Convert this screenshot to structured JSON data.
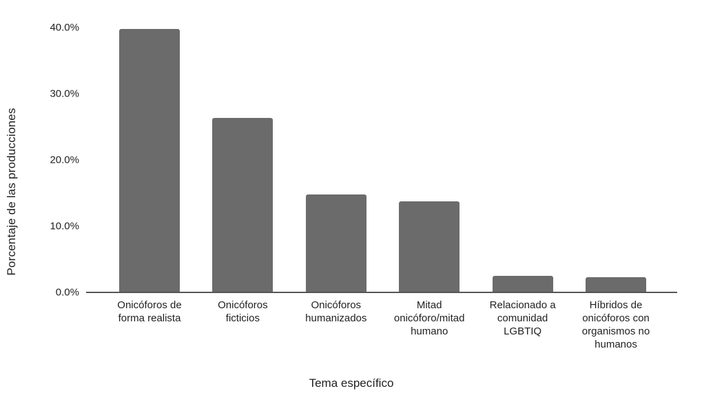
{
  "chart_data": {
    "type": "bar",
    "title": "",
    "xlabel": "Tema específico",
    "ylabel": "Porcentaje de las producciones",
    "categories": [
      "Onicóforos de forma realista",
      "Onicóforos ficticios",
      "Onicóforos humanizados",
      "Mitad onicóforo/mitad humano",
      "Relacionado a comunidad LGBTIQ",
      "Híbridos de onicóforos con organismos no humanos"
    ],
    "category_lines": [
      [
        "Onicóforos de",
        "forma realista"
      ],
      [
        "Onicóforos",
        "ficticios"
      ],
      [
        "Onicóforos",
        "humanizados"
      ],
      [
        "Mitad",
        "onicóforo/mitad",
        "humano"
      ],
      [
        "Relacionado a",
        "comunidad",
        "LGBTIQ"
      ],
      [
        "Híbridos de",
        "onicóforos con",
        "organismos no",
        "humanos"
      ]
    ],
    "values": [
      39.8,
      26.4,
      14.8,
      13.7,
      2.5,
      2.3
    ],
    "value_unit": "%",
    "ylim": [
      0,
      40
    ],
    "yticks": [
      0,
      10,
      20,
      30,
      40
    ],
    "ytick_labels": [
      "0.0%",
      "10.0%",
      "20.0%",
      "30.0%",
      "40.0%"
    ],
    "grid": false,
    "legend": "none",
    "bar_color": "#6b6b6b",
    "axis_color": "#555555",
    "text_color": "#1f1f1f",
    "background_color": "#ffffff"
  }
}
